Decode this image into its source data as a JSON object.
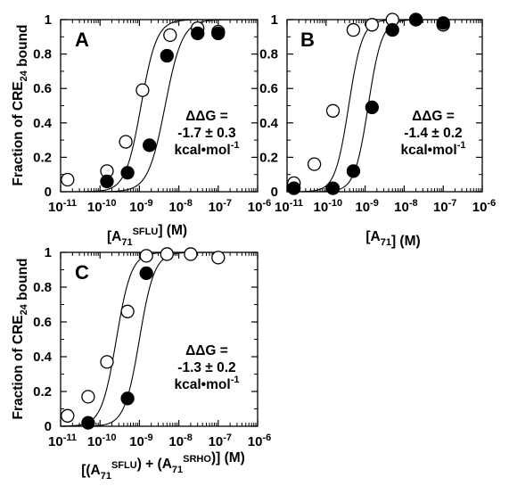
{
  "chart_data": [
    {
      "type": "scatter",
      "panel_label": "A",
      "xscale": "log",
      "xlim": [
        1e-11,
        1e-06
      ],
      "ylim": [
        0,
        1
      ],
      "x_tick_labels": [
        "10-11",
        "10-10",
        "10-9",
        "10-8",
        "10-7",
        "10-6"
      ],
      "y_tick_labels": [
        "0",
        "0.2",
        "0.4",
        "0.6",
        "0.8",
        "1"
      ],
      "ylabel": "Fraction of CRE24 bound",
      "xlabel": "[A71SFLU] (M)",
      "annotation": [
        "ΔΔG =",
        "-1.7 ± 0.3",
        "kcal•mol-1"
      ],
      "series": [
        {
          "marker": "open-circle",
          "fit_midpoint": 1.1e-09,
          "fit_hill": 2.2,
          "points": [
            [
              1.5e-11,
              0.07
            ],
            [
              1.5e-10,
              0.12
            ],
            [
              4.5e-10,
              0.29
            ],
            [
              1.2e-09,
              0.59
            ],
            [
              6e-09,
              0.91
            ],
            [
              3e-08,
              0.95
            ],
            [
              1e-07,
              0.93
            ]
          ]
        },
        {
          "marker": "filled-circle",
          "fit_midpoint": 4.5e-09,
          "fit_hill": 2.0,
          "points": [
            [
              1.5e-10,
              0.06
            ],
            [
              5e-10,
              0.11
            ],
            [
              1.8e-09,
              0.27
            ],
            [
              5e-09,
              0.79
            ],
            [
              3e-08,
              0.92
            ],
            [
              1e-07,
              0.92
            ]
          ]
        }
      ]
    },
    {
      "type": "scatter",
      "panel_label": "B",
      "xscale": "log",
      "xlim": [
        1e-11,
        1e-06
      ],
      "ylim": [
        0,
        1
      ],
      "x_tick_labels": [
        "10-11",
        "10-10",
        "10-9",
        "10-8",
        "10-7",
        "10-6"
      ],
      "y_tick_labels": [
        "0",
        "0.2",
        "0.4",
        "0.6",
        "0.8",
        "1"
      ],
      "ylabel": "",
      "xlabel": "[A71] (M)",
      "annotation": [
        "ΔΔG =",
        "-1.4 ± 0.2",
        "kcal•mol-1"
      ],
      "series": [
        {
          "marker": "open-circle",
          "fit_midpoint": 3.8e-10,
          "fit_hill": 2.5,
          "points": [
            [
              1.5e-11,
              0.05
            ],
            [
              5e-11,
              0.16
            ],
            [
              1.5e-10,
              0.47
            ],
            [
              5e-10,
              0.94
            ],
            [
              1.5e-09,
              0.97
            ],
            [
              5e-09,
              1.0
            ],
            [
              2e-08,
              1.0
            ],
            [
              1e-07,
              0.97
            ]
          ]
        },
        {
          "marker": "filled-circle",
          "fit_midpoint": 1.2e-09,
          "fit_hill": 2.5,
          "points": [
            [
              1.5e-11,
              0.02
            ],
            [
              1.5e-10,
              0.02
            ],
            [
              5e-10,
              0.12
            ],
            [
              1.5e-09,
              0.49
            ],
            [
              5e-09,
              0.94
            ],
            [
              2e-08,
              1.0
            ],
            [
              1e-07,
              0.98
            ]
          ]
        }
      ]
    },
    {
      "type": "scatter",
      "panel_label": "C",
      "xscale": "log",
      "xlim": [
        1e-11,
        1e-06
      ],
      "ylim": [
        0,
        1
      ],
      "x_tick_labels": [
        "10-11",
        "10-10",
        "10-9",
        "10-8",
        "10-7",
        "10-6"
      ],
      "y_tick_labels": [
        "0",
        "0.2",
        "0.4",
        "0.6",
        "0.8",
        "1"
      ],
      "ylabel": "Fraction of CRE24 bound",
      "xlabel": "[(A71SFLU) + (A71SRHO)] (M)",
      "annotation": [
        "ΔΔG =",
        "-1.3 ± 0.2",
        "kcal•mol-1"
      ],
      "series": [
        {
          "marker": "open-circle",
          "fit_midpoint": 2.6e-10,
          "fit_hill": 2.3,
          "points": [
            [
              1.5e-11,
              0.06
            ],
            [
              5e-11,
              0.17
            ],
            [
              1.5e-10,
              0.37
            ],
            [
              5e-10,
              0.66
            ],
            [
              1.5e-09,
              0.98
            ],
            [
              5e-09,
              0.99
            ],
            [
              2e-08,
              0.99
            ],
            [
              1e-07,
              0.97
            ]
          ]
        },
        {
          "marker": "filled-circle",
          "fit_midpoint": 1e-09,
          "fit_hill": 2.3,
          "points": [
            [
              5e-11,
              0.02
            ],
            [
              5e-10,
              0.16
            ],
            [
              1.5e-09,
              0.88
            ]
          ]
        }
      ]
    }
  ]
}
